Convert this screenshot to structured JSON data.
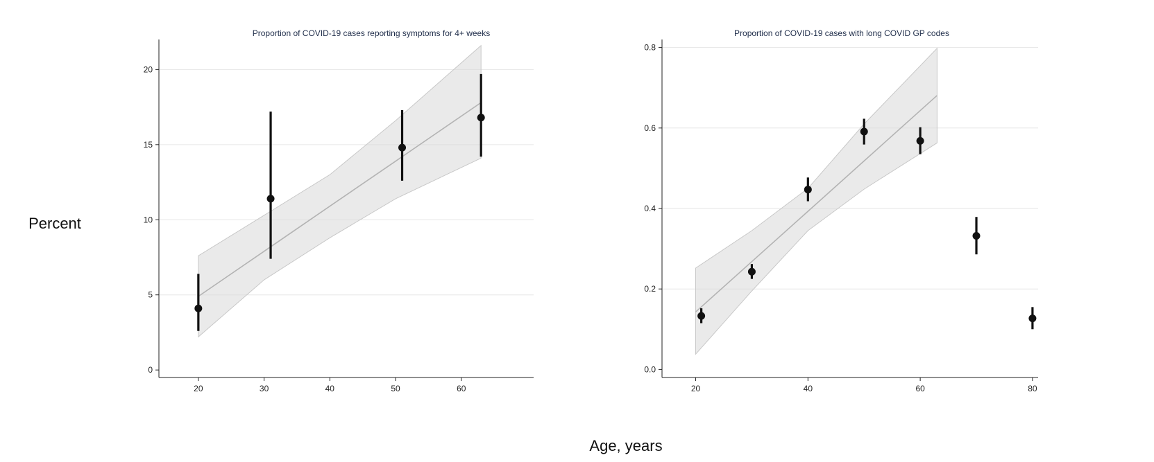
{
  "shared": {
    "ylabel": "Percent",
    "xlabel": "Age, years"
  },
  "chart_data": [
    {
      "type": "scatter",
      "title": "Proportion of COVID-19 cases reporting symptoms for 4+ weeks",
      "xlim": [
        14,
        71
      ],
      "ylim": [
        -0.5,
        22
      ],
      "xticks": [
        20,
        30,
        40,
        50,
        60
      ],
      "yticks": [
        0,
        5,
        10,
        15,
        20
      ],
      "ytick_labels": [
        "0",
        "5",
        "10",
        "15",
        "20"
      ],
      "points": [
        {
          "x": 20,
          "y": 4.1,
          "lo": 2.6,
          "hi": 6.4
        },
        {
          "x": 31,
          "y": 11.4,
          "lo": 7.4,
          "hi": 17.2
        },
        {
          "x": 51,
          "y": 14.8,
          "lo": 12.6,
          "hi": 17.3
        },
        {
          "x": 63,
          "y": 16.8,
          "lo": 14.2,
          "hi": 19.7
        }
      ],
      "fit": {
        "x": [
          20,
          30,
          40,
          50,
          63
        ],
        "y": [
          4.9,
          7.9,
          10.9,
          13.9,
          17.8
        ],
        "lo": [
          2.2,
          6.0,
          8.8,
          11.4,
          14.1
        ],
        "hi": [
          7.6,
          10.3,
          13.0,
          16.6,
          21.6
        ]
      }
    },
    {
      "type": "scatter",
      "title": "Proportion of COVID-19 cases with long COVID GP codes",
      "xlim": [
        14,
        81
      ],
      "ylim": [
        -0.02,
        0.82
      ],
      "xticks": [
        20,
        40,
        60,
        80
      ],
      "yticks": [
        0,
        0.2,
        0.4,
        0.6,
        0.8
      ],
      "ytick_labels": [
        "0.0",
        "0.2",
        "0.4",
        "0.6",
        "0.8"
      ],
      "points": [
        {
          "x": 21,
          "y": 0.133,
          "lo": 0.115,
          "hi": 0.152
        },
        {
          "x": 30,
          "y": 0.243,
          "lo": 0.225,
          "hi": 0.262
        },
        {
          "x": 40,
          "y": 0.447,
          "lo": 0.418,
          "hi": 0.477
        },
        {
          "x": 50,
          "y": 0.591,
          "lo": 0.559,
          "hi": 0.623
        },
        {
          "x": 60,
          "y": 0.568,
          "lo": 0.535,
          "hi": 0.602
        },
        {
          "x": 70,
          "y": 0.332,
          "lo": 0.286,
          "hi": 0.379
        },
        {
          "x": 80,
          "y": 0.127,
          "lo": 0.1,
          "hi": 0.155
        }
      ],
      "fit": {
        "x": [
          20,
          30,
          40,
          50,
          63
        ],
        "y": [
          0.143,
          0.268,
          0.393,
          0.518,
          0.681
        ],
        "lo": [
          0.038,
          0.195,
          0.345,
          0.448,
          0.563
        ],
        "hi": [
          0.252,
          0.345,
          0.45,
          0.61,
          0.798
        ]
      }
    }
  ]
}
